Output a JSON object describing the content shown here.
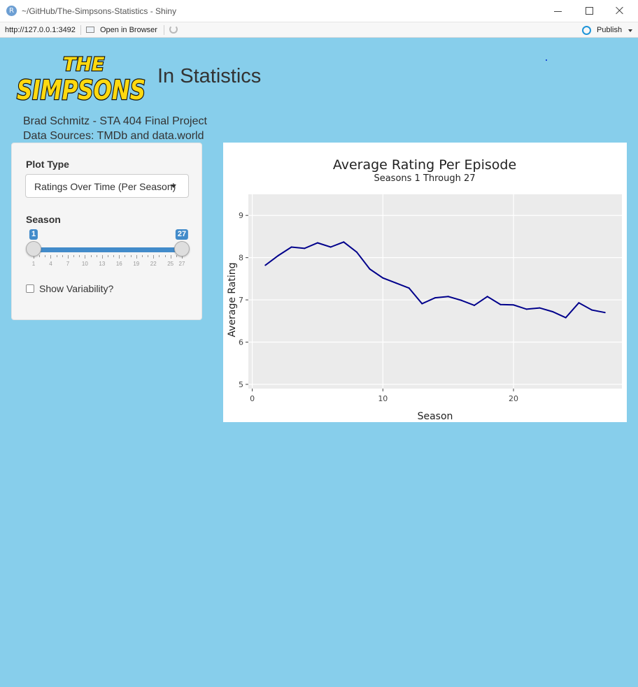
{
  "window": {
    "title": "~/GitHub/The-Simpsons-Statistics - Shiny",
    "icon": "r-app-icon",
    "icon_letter": "R"
  },
  "toolbar": {
    "url": "http://127.0.0.1:3492",
    "open_in_browser_label": "Open in Browser",
    "publish_label": "Publish"
  },
  "header": {
    "logo_text_top": "THE",
    "logo_text_bottom": "SIMPSONS",
    "title": "In Statistics",
    "credit_line1": "Brad Schmitz - STA 404 Final Project",
    "credit_line2": "Data Sources: TMDb and data.world"
  },
  "sidebar": {
    "plot_type_label": "Plot Type",
    "plot_type_value": "Ratings Over Time (Per Season)",
    "season_label": "Season",
    "season_slider": {
      "min": 1,
      "max": 27,
      "from": 1,
      "to": 27,
      "tick_labels": [
        "1",
        "4",
        "7",
        "10",
        "13",
        "16",
        "19",
        "22",
        "25",
        "27"
      ]
    },
    "variability_label": "Show Variability?",
    "variability_checked": false
  },
  "colors": {
    "page_background": "#87CEEB",
    "accent": "#428bca",
    "series_line": "#00008B",
    "plot_panel": "#EBEBEB",
    "logo_yellow": "#FFD90F"
  },
  "chart_data": {
    "type": "line",
    "title": "Average Rating Per Episode",
    "subtitle": "Seasons 1 Through 27",
    "xlabel": "Season",
    "ylabel": "Average Rating",
    "xlim": [
      -0.3,
      28.3
    ],
    "ylim": [
      4.9,
      9.5
    ],
    "xticks": [
      0,
      10,
      20
    ],
    "yticks": [
      5,
      6,
      7,
      8,
      9
    ],
    "grid": true,
    "x": [
      1,
      2,
      3,
      4,
      5,
      6,
      7,
      8,
      9,
      10,
      11,
      12,
      13,
      14,
      15,
      16,
      17,
      18,
      19,
      20,
      21,
      22,
      23,
      24,
      25,
      26,
      27
    ],
    "values": [
      7.82,
      8.05,
      8.25,
      8.22,
      8.35,
      8.25,
      8.37,
      8.13,
      7.73,
      7.52,
      7.4,
      7.28,
      6.91,
      7.05,
      7.08,
      6.99,
      6.87,
      7.08,
      6.89,
      6.88,
      6.78,
      6.81,
      6.72,
      6.58,
      6.93,
      6.76,
      6.7
    ]
  }
}
